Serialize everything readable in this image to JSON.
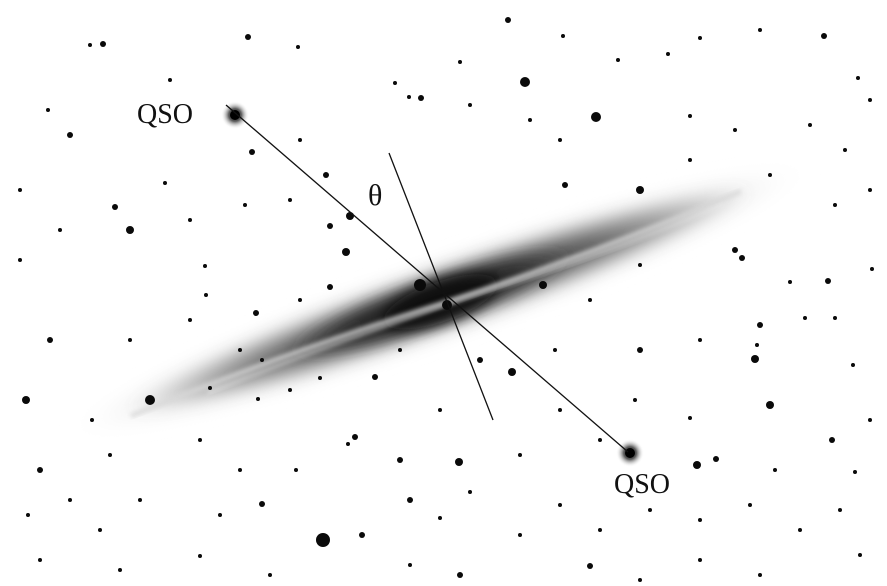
{
  "labels": {
    "qso_top": "QSO",
    "qso_bottom": "QSO",
    "angle": "θ"
  },
  "colors": {
    "background": "#ffffff",
    "ink": "#111111",
    "galaxy_core": "#1a1a1a",
    "galaxy_halo": "#8a8a8a"
  }
}
